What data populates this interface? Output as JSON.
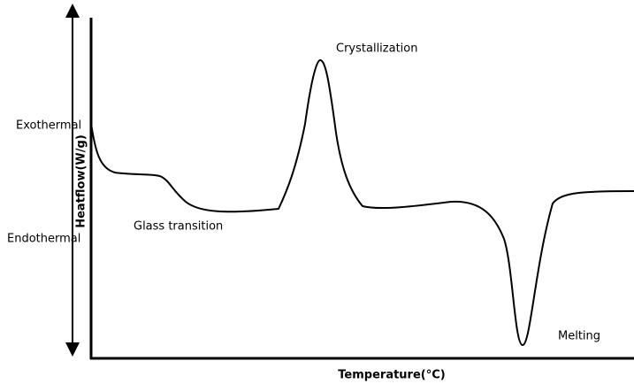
{
  "labels": {
    "exothermal": "Exothermal",
    "endothermal": "Endothermal",
    "y_axis": "Heatflow(W/g)",
    "x_axis": "Temperature(°C)",
    "crystallization": "Crystallization",
    "glass_transition": "Glass transition",
    "melting": "Melting"
  }
}
